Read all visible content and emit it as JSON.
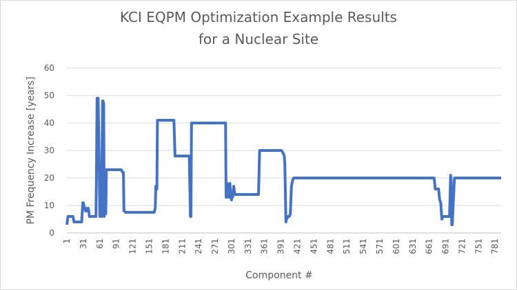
{
  "chart_data": {
    "type": "line",
    "title": "KCI EQPM Optimization Example Results",
    "subtitle": "for a Nuclear Site",
    "xlabel": "Component #",
    "ylabel": "PM Frequency Increase [years]",
    "xlim": [
      1,
      792
    ],
    "ylim": [
      0,
      60
    ],
    "yticks": [
      0,
      10,
      20,
      30,
      40,
      50,
      60
    ],
    "xticks": [
      1,
      31,
      61,
      91,
      121,
      151,
      181,
      211,
      241,
      271,
      301,
      331,
      361,
      391,
      421,
      451,
      481,
      511,
      541,
      571,
      601,
      631,
      661,
      691,
      721,
      751,
      781
    ],
    "grid": "horizontal",
    "legend": "none",
    "line_color": "#4472c4",
    "series": [
      {
        "x": [
          1,
          3,
          5,
          12,
          14,
          28,
          30,
          31,
          32,
          35,
          37,
          38,
          40,
          42,
          44,
          54,
          55,
          56,
          57,
          58,
          60,
          61,
          62,
          64,
          66,
          67,
          68,
          69,
          70,
          72,
          73,
          74,
          75,
          76,
          77,
          78,
          80,
          100,
          103,
          104,
          105,
          106,
          108,
          160,
          162,
          163,
          165,
          166,
          168,
          170,
          171,
          172,
          196,
          198,
          200,
          222,
          224,
          226,
          227,
          228,
          230,
          289,
          290,
          291,
          293,
          294,
          296,
          297,
          298,
          300,
          301,
          302,
          303,
          305,
          307,
          310,
          350,
          352,
          392,
          395,
          397,
          398,
          400,
          401,
          404,
          406,
          408,
          410,
          412,
          414,
          416,
          418,
          420,
          670,
          672,
          678,
          680,
          682,
          684,
          686,
          696,
          698,
          700,
          701,
          702,
          703,
          706,
          707,
          708,
          711,
          792
        ],
        "y": [
          3,
          6,
          6,
          6,
          4,
          4,
          11,
          11,
          10,
          8,
          8,
          9,
          9,
          6,
          6,
          6,
          23,
          49,
          49,
          49,
          23,
          6,
          23,
          6,
          48,
          48,
          47,
          6,
          23,
          7,
          23,
          23,
          23,
          23,
          23,
          23,
          23,
          23,
          22,
          22,
          8,
          8,
          7.5,
          7.5,
          9,
          17,
          16,
          41,
          41,
          41,
          41,
          41,
          41,
          28,
          28,
          28,
          28,
          6,
          6,
          40,
          40,
          40,
          40,
          13,
          18,
          13,
          15,
          13,
          18,
          13,
          12,
          14,
          13,
          17,
          14,
          14,
          14,
          30,
          30,
          29,
          28,
          25,
          4,
          5,
          6,
          6,
          7,
          17,
          19,
          20,
          20,
          20,
          20,
          20,
          16,
          16,
          12,
          11,
          5,
          6,
          6,
          6,
          21,
          19,
          3,
          3,
          16,
          20,
          20,
          20,
          20
        ]
      }
    ]
  }
}
